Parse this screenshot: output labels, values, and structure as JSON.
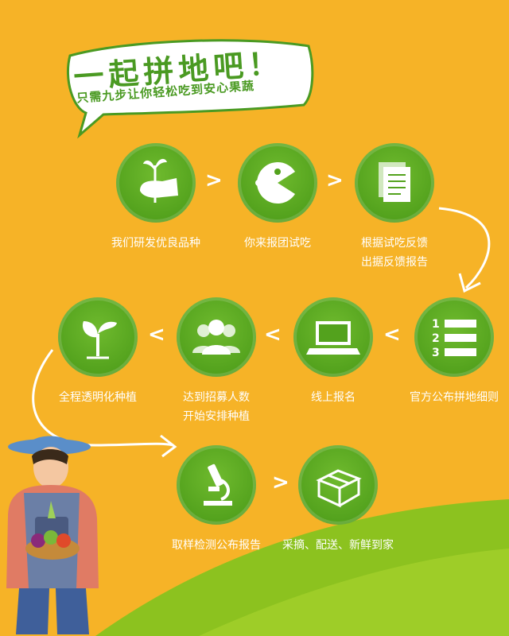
{
  "title": "一起拼地吧！",
  "subtitle": "只需九步让你轻松吃到安心果蔬",
  "steps": [
    {
      "label": "我们研发优良品种",
      "icon": "sprout-hand-icon"
    },
    {
      "label": "你来报团试吃",
      "icon": "pacman-icon"
    },
    {
      "label": "根据试吃反馈\n出据反馈报告",
      "icon": "documents-icon"
    },
    {
      "label": "官方公布拼地细则",
      "icon": "numbered-list-icon"
    },
    {
      "label": "线上报名",
      "icon": "laptop-icon"
    },
    {
      "label": "达到招募人数\n开始安排种植",
      "icon": "people-icon"
    },
    {
      "label": "全程透明化种植",
      "icon": "seedling-icon"
    },
    {
      "label": "取样检测公布报告",
      "icon": "microscope-icon"
    },
    {
      "label": "采摘、配送、新鲜到家",
      "icon": "box-icon"
    }
  ],
  "colors": {
    "background": "#f6b327",
    "circle": "#53a21d",
    "title": "#4a9a22",
    "wave": "#8cc21f"
  },
  "separators": {
    "forward": ">",
    "backward": "<"
  }
}
